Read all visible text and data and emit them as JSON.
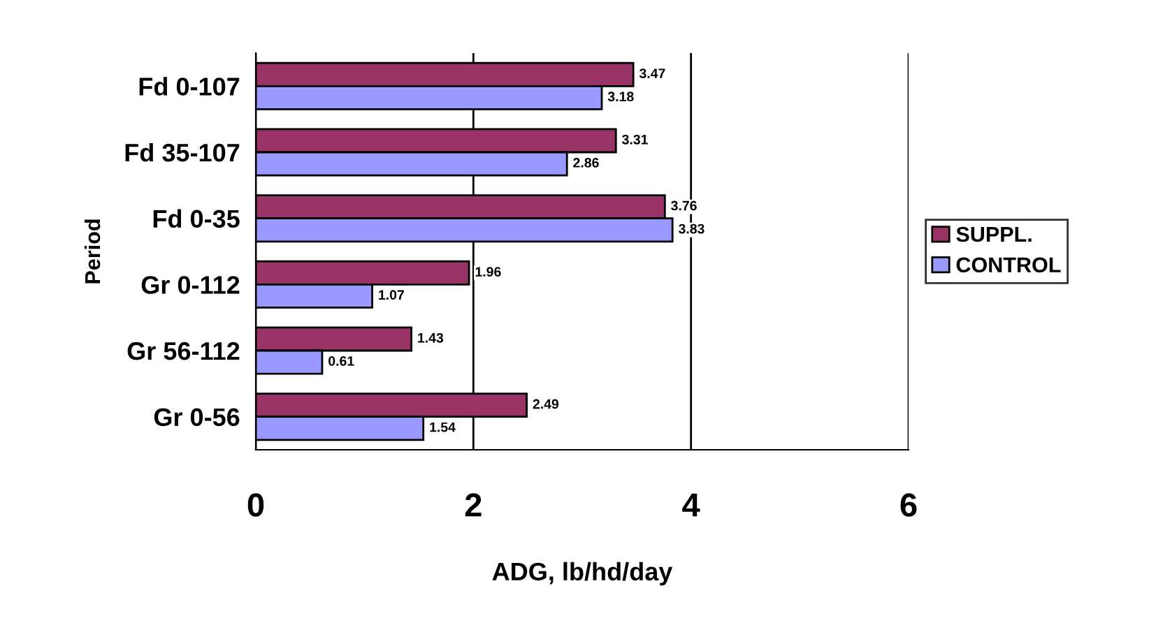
{
  "chart_data": {
    "type": "bar",
    "orientation": "horizontal",
    "xlabel": "ADG, lb/hd/day",
    "ylabel": "Period",
    "categories": [
      "Fd 0-107",
      "Fd 35-107",
      "Fd 0-35",
      "Gr 0-112",
      "Gr 56-112",
      "Gr 0-56"
    ],
    "series": [
      {
        "name": "SUPPL.",
        "color": "#993366",
        "values": [
          3.47,
          3.31,
          3.76,
          1.96,
          1.43,
          2.49
        ]
      },
      {
        "name": "CONTROL",
        "color": "#9999ff",
        "values": [
          3.18,
          2.86,
          3.83,
          1.07,
          0.61,
          1.54
        ]
      }
    ],
    "xlim": [
      0,
      6
    ],
    "xticks": [
      0,
      2,
      4,
      6
    ],
    "grid": "x",
    "legend": "right",
    "data_labels": true
  }
}
